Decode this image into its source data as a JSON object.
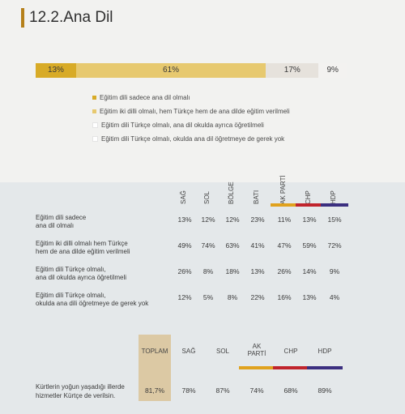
{
  "title": "12.2.Ana Dil",
  "chart_data": [
    {
      "type": "bar",
      "stacked": true,
      "orientation": "horizontal",
      "series": [
        {
          "name": "Eğitim dili sadece ana dil olmalı",
          "value": 13,
          "label": "13%",
          "color": "#d8ab27"
        },
        {
          "name": "Eğitim iki dilli olmalı, hem Türkçe hem de ana dilde eğitim verilmeli",
          "value": 61,
          "label": "61%",
          "color": "#e7c96f"
        },
        {
          "name": "Eğitim dili Türkçe olmalı, ana dil okulda ayrıca öğretilmeli",
          "value": 17,
          "label": "17%",
          "color": "#e6e2dc"
        },
        {
          "name": "Eğitim dili Türkçe olmalı, okulda ana dil öğretmeye de gerek yok",
          "value": 9,
          "label": "9%",
          "color": "#f3f2f0"
        }
      ]
    },
    {
      "type": "table",
      "columns": [
        {
          "label": "SAĞ",
          "bar_color": ""
        },
        {
          "label": "SOL",
          "bar_color": ""
        },
        {
          "label": "BÖLGE",
          "bar_color": ""
        },
        {
          "label": "BATI",
          "bar_color": ""
        },
        {
          "label": "AK PARTİ",
          "bar_color": "#e0a21e"
        },
        {
          "label": "CHP",
          "bar_color": "#c0242c"
        },
        {
          "label": "HDP",
          "bar_color": "#3b2f80"
        }
      ],
      "rows": [
        {
          "label_1": "Eğitim dili sadece",
          "label_2": "ana dil olmalı",
          "values": [
            "13%",
            "12%",
            "12%",
            "23%",
            "11%",
            "13%",
            "15%"
          ]
        },
        {
          "label_1": "Eğitim iki dilli olmalı hem Türkçe",
          "label_2": "hem de ana dilde eğitim verilmeli",
          "values": [
            "49%",
            "74%",
            "63%",
            "41%",
            "47%",
            "59%",
            "72%"
          ]
        },
        {
          "label_1": "Eğitim dili Türkçe olmalı,",
          "label_2": "ana dil okulda ayrıca öğretilmeli",
          "values": [
            "26%",
            "8%",
            "18%",
            "13%",
            "26%",
            "14%",
            "9%"
          ]
        },
        {
          "label_1": "Eğitim dili Türkçe olmalı,",
          "label_2": "okulda ana dili öğretmeye de gerek yok",
          "values": [
            "12%",
            "5%",
            "8%",
            "22%",
            "16%",
            "13%",
            "4%"
          ]
        }
      ]
    },
    {
      "type": "table",
      "columns": [
        {
          "label_1": "TOPLAM",
          "label_2": "",
          "bar_color": ""
        },
        {
          "label_1": "SAĞ",
          "label_2": "",
          "bar_color": ""
        },
        {
          "label_1": "SOL",
          "label_2": "",
          "bar_color": ""
        },
        {
          "label_1": "AK",
          "label_2": "PARTİ",
          "bar_color": "#e0a21e"
        },
        {
          "label_1": "CHP",
          "label_2": "",
          "bar_color": "#c0242c"
        },
        {
          "label_1": "HDP",
          "label_2": "",
          "bar_color": "#3b2f80"
        }
      ],
      "rows": [
        {
          "label_1": "Kürtlerin yoğun yaşadığı illerde",
          "label_2": "hizmetler Kürtçe de verilsin.",
          "values": [
            "81,7%",
            "78%",
            "87%",
            "74%",
            "68%",
            "89%"
          ]
        }
      ]
    }
  ]
}
